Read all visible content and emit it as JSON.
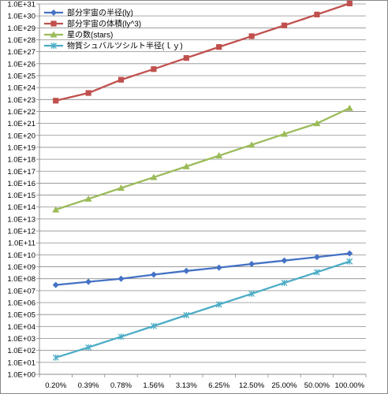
{
  "chart_data": {
    "type": "line",
    "y_scale": "log",
    "ylim": [
      1,
      1e+31
    ],
    "grid": true,
    "legend_position": "top-left",
    "categories": [
      "0.20%",
      "0.39%",
      "0.78%",
      "1.56%",
      "3.13%",
      "6.25%",
      "12.50%",
      "25.00%",
      "50.00%",
      "100.00%"
    ],
    "y_tick_labels": [
      "1.0E+00",
      "1.0E+01",
      "1.0E+02",
      "1.0E+03",
      "1.0E+04",
      "1.0E+05",
      "1.0E+06",
      "1.0E+07",
      "1.0E+08",
      "1.0E+09",
      "1.0E+10",
      "1.0E+11",
      "1.0E+12",
      "1.0E+13",
      "1.0E+14",
      "1.0E+15",
      "1.0E+16",
      "1.0E+17",
      "1.0E+18",
      "1.0E+19",
      "1.0E+20",
      "1.0E+21",
      "1.0E+22",
      "1.0E+23",
      "1.0E+24",
      "1.0E+25",
      "1.0E+26",
      "1.0E+27",
      "1.0E+28",
      "1.0E+29",
      "1.0E+30",
      "1.0E+31"
    ],
    "series": [
      {
        "name": "部分宇宙の半径(ly)",
        "color": "#4472C4",
        "marker": "diamond",
        "values": [
          30000000.0,
          55000000.0,
          100000000.0,
          220000000.0,
          450000000.0,
          850000000.0,
          1700000000.0,
          3300000000.0,
          6500000000.0,
          13000000000.0
        ]
      },
      {
        "name": "部分宇宙の体積(ly^3)",
        "color": "#C0504D",
        "marker": "square",
        "values": [
          8e+22,
          3.5e+23,
          4.5e+24,
          3.5e+25,
          3e+26,
          2.5e+27,
          2e+28,
          1.6e+29,
          1.3e+30,
          1.1e+31
        ]
      },
      {
        "name": "星の数(stars)",
        "color": "#9BBB59",
        "marker": "triangle",
        "values": [
          60000000000000.0,
          480000000000000.0,
          3900000000000000.0,
          3.1e+16,
          2.5e+17,
          2e+18,
          1.6e+19,
          1.3e+20,
          1e+21,
          1.9e+22
        ]
      },
      {
        "name": "物質シュバルツシルト半径(ｌｙ)",
        "color": "#4BACC6",
        "marker": "x",
        "values": [
          25,
          180,
          1400,
          11000.0,
          90000.0,
          700000.0,
          5500000.0,
          45000000.0,
          350000000.0,
          2800000000.0
        ]
      }
    ]
  }
}
